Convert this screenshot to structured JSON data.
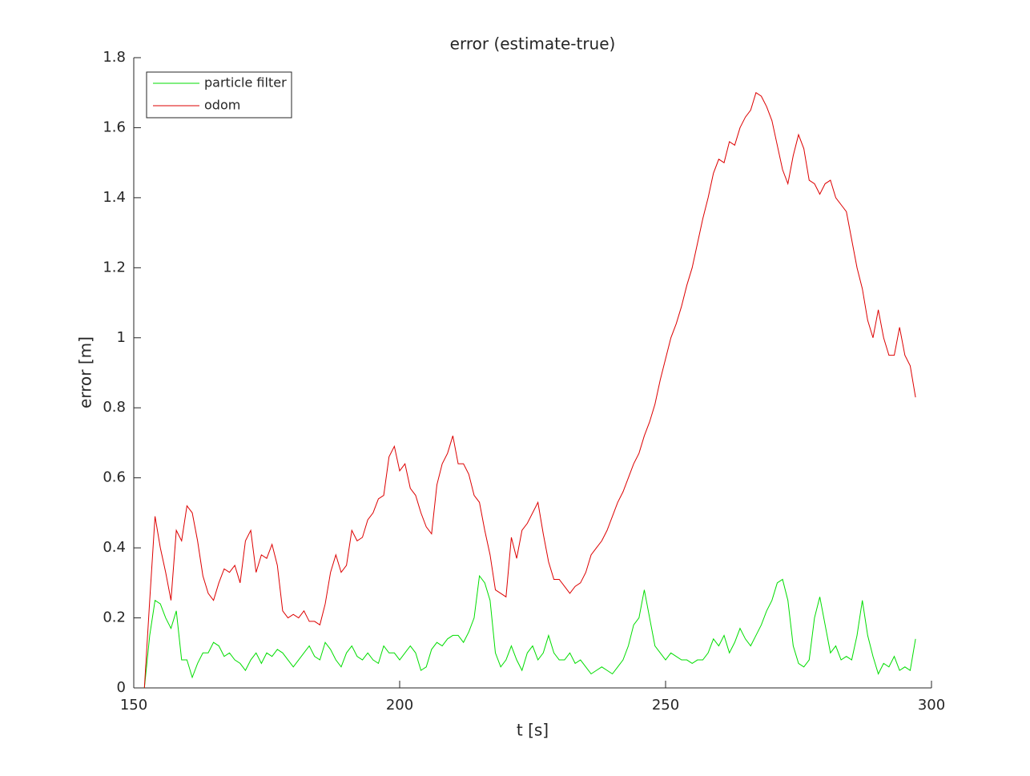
{
  "chart_data": {
    "type": "line",
    "title": "error (estimate-true)",
    "xlabel": "t [s]",
    "ylabel": "error [m]",
    "x": [
      152,
      153,
      154,
      155,
      156,
      157,
      158,
      159,
      160,
      161,
      162,
      163,
      164,
      165,
      166,
      167,
      168,
      169,
      170,
      171,
      172,
      173,
      174,
      175,
      176,
      177,
      178,
      179,
      180,
      181,
      182,
      183,
      184,
      185,
      186,
      187,
      188,
      189,
      190,
      191,
      192,
      193,
      194,
      195,
      196,
      197,
      198,
      199,
      200,
      201,
      202,
      203,
      204,
      205,
      206,
      207,
      208,
      209,
      210,
      211,
      212,
      213,
      214,
      215,
      216,
      217,
      218,
      219,
      220,
      221,
      222,
      223,
      224,
      225,
      226,
      227,
      228,
      229,
      230,
      231,
      232,
      233,
      234,
      235,
      236,
      237,
      238,
      239,
      240,
      241,
      242,
      243,
      244,
      245,
      246,
      247,
      248,
      249,
      250,
      251,
      252,
      253,
      254,
      255,
      256,
      257,
      258,
      259,
      260,
      261,
      262,
      263,
      264,
      265,
      266,
      267,
      268,
      269,
      270,
      271,
      272,
      273,
      274,
      275,
      276,
      277,
      278,
      279,
      280,
      281,
      282,
      283,
      284,
      285,
      286,
      287,
      288,
      289,
      290,
      291,
      292,
      293,
      294,
      295,
      296,
      297
    ],
    "series": [
      {
        "name": "particle filter",
        "color": "#00dd00",
        "values": [
          0,
          0.15,
          0.25,
          0.24,
          0.2,
          0.17,
          0.22,
          0.08,
          0.08,
          0.03,
          0.07,
          0.1,
          0.1,
          0.13,
          0.12,
          0.09,
          0.1,
          0.08,
          0.07,
          0.05,
          0.08,
          0.1,
          0.07,
          0.1,
          0.09,
          0.11,
          0.1,
          0.08,
          0.06,
          0.08,
          0.1,
          0.12,
          0.09,
          0.08,
          0.13,
          0.11,
          0.08,
          0.06,
          0.1,
          0.12,
          0.09,
          0.08,
          0.1,
          0.08,
          0.07,
          0.12,
          0.1,
          0.1,
          0.08,
          0.1,
          0.12,
          0.1,
          0.05,
          0.06,
          0.11,
          0.13,
          0.12,
          0.14,
          0.15,
          0.15,
          0.13,
          0.16,
          0.2,
          0.32,
          0.3,
          0.25,
          0.1,
          0.06,
          0.08,
          0.12,
          0.08,
          0.05,
          0.1,
          0.12,
          0.08,
          0.1,
          0.15,
          0.1,
          0.08,
          0.08,
          0.1,
          0.07,
          0.08,
          0.06,
          0.04,
          0.05,
          0.06,
          0.05,
          0.04,
          0.06,
          0.08,
          0.12,
          0.18,
          0.2,
          0.28,
          0.2,
          0.12,
          0.1,
          0.08,
          0.1,
          0.09,
          0.08,
          0.08,
          0.07,
          0.08,
          0.08,
          0.1,
          0.14,
          0.12,
          0.15,
          0.1,
          0.13,
          0.17,
          0.14,
          0.12,
          0.15,
          0.18,
          0.22,
          0.25,
          0.3,
          0.31,
          0.25,
          0.12,
          0.07,
          0.06,
          0.08,
          0.2,
          0.26,
          0.18,
          0.1,
          0.12,
          0.08,
          0.09,
          0.08,
          0.15,
          0.25,
          0.15,
          0.09,
          0.04,
          0.07,
          0.06,
          0.09,
          0.05,
          0.06,
          0.05,
          0.14
        ]
      },
      {
        "name": "odom",
        "color": "#dd0000",
        "values": [
          0,
          0.25,
          0.49,
          0.4,
          0.33,
          0.25,
          0.45,
          0.42,
          0.52,
          0.5,
          0.42,
          0.32,
          0.27,
          0.25,
          0.3,
          0.34,
          0.33,
          0.35,
          0.3,
          0.42,
          0.45,
          0.33,
          0.38,
          0.37,
          0.41,
          0.35,
          0.22,
          0.2,
          0.21,
          0.2,
          0.22,
          0.19,
          0.19,
          0.18,
          0.24,
          0.33,
          0.38,
          0.33,
          0.35,
          0.45,
          0.42,
          0.43,
          0.48,
          0.5,
          0.54,
          0.55,
          0.66,
          0.69,
          0.62,
          0.64,
          0.57,
          0.55,
          0.5,
          0.46,
          0.44,
          0.58,
          0.64,
          0.67,
          0.72,
          0.64,
          0.64,
          0.61,
          0.55,
          0.53,
          0.45,
          0.38,
          0.28,
          0.27,
          0.26,
          0.43,
          0.37,
          0.45,
          0.47,
          0.5,
          0.53,
          0.44,
          0.36,
          0.31,
          0.31,
          0.29,
          0.27,
          0.29,
          0.3,
          0.33,
          0.38,
          0.4,
          0.42,
          0.45,
          0.49,
          0.53,
          0.56,
          0.6,
          0.64,
          0.67,
          0.72,
          0.76,
          0.81,
          0.88,
          0.94,
          1.0,
          1.04,
          1.09,
          1.15,
          1.2,
          1.27,
          1.34,
          1.4,
          1.47,
          1.51,
          1.5,
          1.56,
          1.55,
          1.6,
          1.63,
          1.65,
          1.7,
          1.69,
          1.66,
          1.62,
          1.55,
          1.48,
          1.44,
          1.52,
          1.58,
          1.54,
          1.45,
          1.44,
          1.41,
          1.44,
          1.45,
          1.4,
          1.38,
          1.36,
          1.28,
          1.2,
          1.14,
          1.05,
          1.0,
          1.08,
          1.0,
          0.95,
          0.95,
          1.03,
          0.95,
          0.92,
          0.83
        ]
      }
    ],
    "xlim": [
      150,
      300
    ],
    "xticks": [
      150,
      200,
      250,
      300
    ],
    "ylim": [
      0,
      1.8
    ],
    "yticks": [
      0,
      0.2,
      0.4,
      0.6,
      0.8,
      1,
      1.2,
      1.4,
      1.6,
      1.8
    ],
    "grid": false,
    "legend": "upper-left"
  }
}
